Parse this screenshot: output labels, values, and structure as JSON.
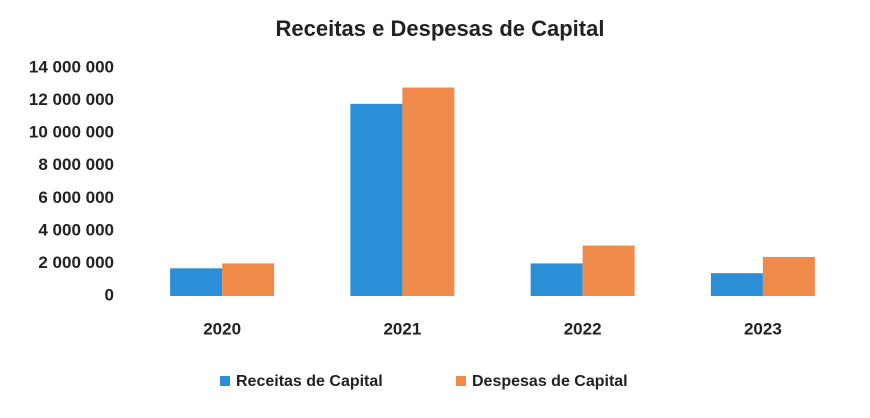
{
  "chart_data": {
    "type": "bar",
    "title": "Receitas e Despesas de Capital",
    "categories": [
      "2020",
      "2021",
      "2022",
      "2023"
    ],
    "series": [
      {
        "name": "Receitas de Capital",
        "color": "#2a8fd6",
        "values": [
          1700000,
          11800000,
          2000000,
          1400000
        ]
      },
      {
        "name": "Despesas de Capital",
        "color": "#f08a4b",
        "values": [
          2000000,
          12800000,
          3100000,
          2400000
        ]
      }
    ],
    "ylim": [
      0,
      14000000
    ],
    "yticks": [
      0,
      {
        "value": 2000000,
        "label": "2 000 000"
      },
      {
        "value": 4000000,
        "label": "4 000 000"
      },
      {
        "value": 6000000,
        "label": "6 000 000"
      },
      {
        "value": 8000000,
        "label": "8 000 000"
      },
      {
        "value": 10000000,
        "label": "10 000 000"
      },
      {
        "value": 12000000,
        "label": "12 000 000"
      },
      {
        "value": 14000000,
        "label": "14 000 000"
      }
    ],
    "grid": false,
    "legend": "bottom"
  }
}
